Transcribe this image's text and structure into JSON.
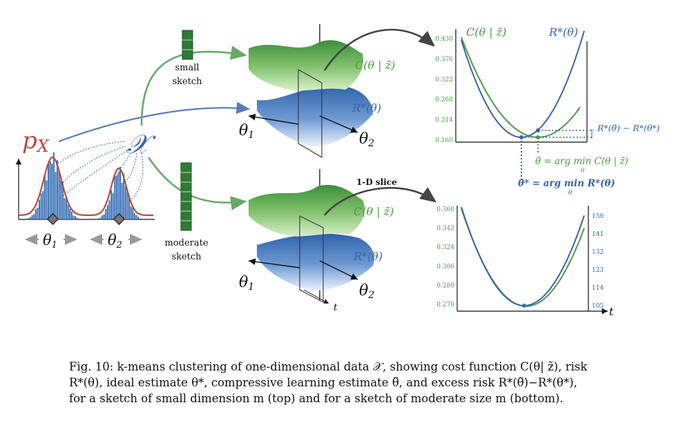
{
  "colors": {
    "red": "#b94a3f",
    "blue": "#3a64a8",
    "green": "#4e9a45",
    "dark_green": "#2f7a36",
    "hist": "#3f74b8"
  },
  "labels": {
    "px": "p",
    "px_sub": "X",
    "X": "𝒳",
    "theta1": "θ",
    "theta1_sub": "1",
    "theta2": "θ",
    "theta2_sub": "2",
    "small_sketch_1": "small",
    "small_sketch_2": "sketch",
    "moderate_sketch_1": "moderate",
    "moderate_sketch_2": "sketch",
    "surface_top_C": "C(θ | z̃)",
    "surface_top_R": "R*(θ)",
    "surface_bot_C": "C(θ | z̃)",
    "surface_bot_R": "R*(θ)",
    "axis_t": "t",
    "one_d_slice": "1-D slice"
  },
  "top_plot": {
    "legend_C": "C(θ | z̃)",
    "legend_R": "R*(θ)",
    "left_ticks": [
      "0.430",
      "0.376",
      "0.322",
      "0.268",
      "0.214",
      "0.160"
    ],
    "excess_risk": "R*(θ̃) − R*(θ*)",
    "theta_tilde_eq": "θ̃ = arg min C(θ | z̃)",
    "theta_tilde_sub": "θ",
    "theta_star_eq": "θ* = arg min R*(θ)",
    "theta_star_sub": "θ"
  },
  "bottom_plot": {
    "left_ticks": [
      "0.360",
      "0.342",
      "0.324",
      "0.306",
      "0.288",
      "0.270"
    ],
    "right_ticks": [
      "150",
      "141",
      "132",
      "123",
      "114",
      "105"
    ],
    "axis_t": "t"
  },
  "caption": {
    "fig": "Fig. 10:",
    "line1": "k-means clustering of one-dimensional data 𝒳, showing cost function C(θ| z̃), risk",
    "line2": "R*(θ), ideal estimate θ*, compressive learning estimate θ̃, and excess risk R*(θ̃)−R*(θ*),",
    "line3": "for a sketch of small dimension m (top) and for a sketch of moderate size m (bottom)."
  }
}
